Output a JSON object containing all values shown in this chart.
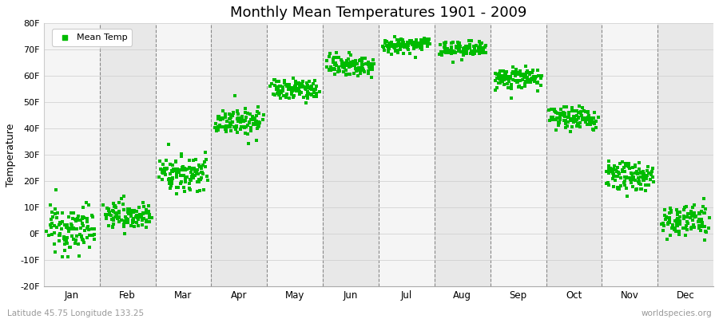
{
  "title": "Monthly Mean Temperatures 1901 - 2009",
  "ylabel": "Temperature",
  "subtitle_left": "Latitude 45.75 Longitude 133.25",
  "subtitle_right": "worldspecies.org",
  "ylim": [
    -20,
    80
  ],
  "yticks": [
    -20,
    -10,
    0,
    10,
    20,
    30,
    40,
    50,
    60,
    70,
    80
  ],
  "ytick_labels": [
    "-20F",
    "-10F",
    "0F",
    "10F",
    "20F",
    "30F",
    "40F",
    "50F",
    "60F",
    "70F",
    "80F"
  ],
  "months": [
    "Jan",
    "Feb",
    "Mar",
    "Apr",
    "May",
    "Jun",
    "Jul",
    "Aug",
    "Sep",
    "Oct",
    "Nov",
    "Dec"
  ],
  "dot_color": "#00bb00",
  "dot_size": 6,
  "background_color": "#ffffff",
  "plot_bg_light": "#f5f5f5",
  "plot_bg_dark": "#e8e8e8",
  "legend_label": "Mean Temp",
  "monthly_means_F": [
    2.0,
    7.0,
    23.0,
    43.0,
    55.0,
    64.0,
    72.0,
    70.0,
    59.0,
    44.0,
    22.0,
    5.0
  ],
  "monthly_stds_F": [
    4.5,
    2.5,
    3.5,
    2.5,
    2.0,
    2.0,
    1.5,
    1.5,
    2.0,
    2.0,
    2.5,
    3.0
  ],
  "n_years": 109,
  "seed": 12345
}
